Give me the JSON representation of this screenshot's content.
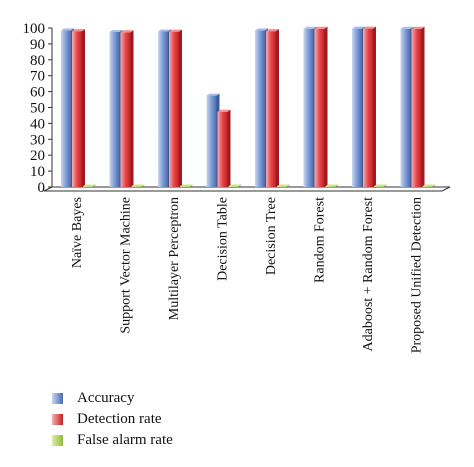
{
  "chart_data": {
    "type": "bar",
    "categories": [
      "Naïve Bayes",
      "Support Vector Machine",
      "Multilayer Perceptron",
      "Decision Table",
      "Decision Tree",
      "Random Forest",
      "Adaboost + Random Forest",
      "Proposed Unified Detection"
    ],
    "series": [
      {
        "name": "Accuracy",
        "values": [
          98.5,
          97.5,
          97.8,
          57.5,
          98.5,
          99.5,
          99.6,
          99.5
        ],
        "color": "#6f90cc"
      },
      {
        "name": "Detection rate",
        "values": [
          98.0,
          97.3,
          97.7,
          47.3,
          98.0,
          99.5,
          99.6,
          99.5
        ],
        "color": "#e8474a"
      },
      {
        "name": "False alarm rate",
        "values": [
          0.3,
          0.3,
          0.3,
          0.3,
          0.3,
          0.3,
          0.3,
          0.3
        ],
        "color": "#a8cd4f"
      }
    ],
    "ylim": [
      0,
      100
    ],
    "yticks": [
      0,
      10,
      20,
      30,
      40,
      50,
      60,
      70,
      80,
      90,
      100
    ],
    "title": "",
    "xlabel": "",
    "ylabel": "",
    "grid": false,
    "legend_placement": "bottom-left"
  }
}
